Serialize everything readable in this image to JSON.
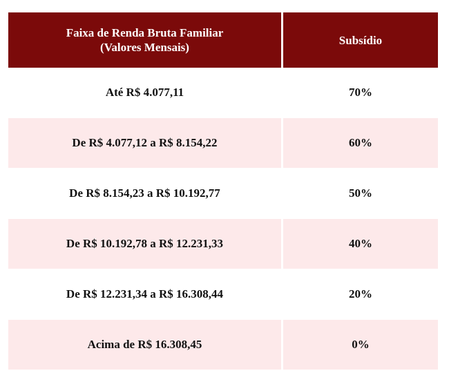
{
  "table": {
    "header": {
      "col1_line1": "Faixa de Renda Bruta Familiar",
      "col1_line2": "(Valores Mensais)",
      "col2": "Subsídio"
    },
    "rows": [
      {
        "range": "Até R$ 4.077,11",
        "subsidy": "70%"
      },
      {
        "range": "De R$ 4.077,12 a R$ 8.154,22",
        "subsidy": "60%"
      },
      {
        "range": "De R$ 8.154,23 a R$ 10.192,77",
        "subsidy": "50%"
      },
      {
        "range": "De R$ 10.192,78 a R$ 12.231,33",
        "subsidy": "40%"
      },
      {
        "range": "De R$ 12.231,34 a R$ 16.308,44",
        "subsidy": "20%"
      },
      {
        "range": "Acima de R$ 16.308,45",
        "subsidy": "0%"
      }
    ],
    "colors": {
      "header_bg": "#7b0a0a",
      "header_text": "#ffffff",
      "shaded_row_bg": "#fde9ea"
    }
  }
}
